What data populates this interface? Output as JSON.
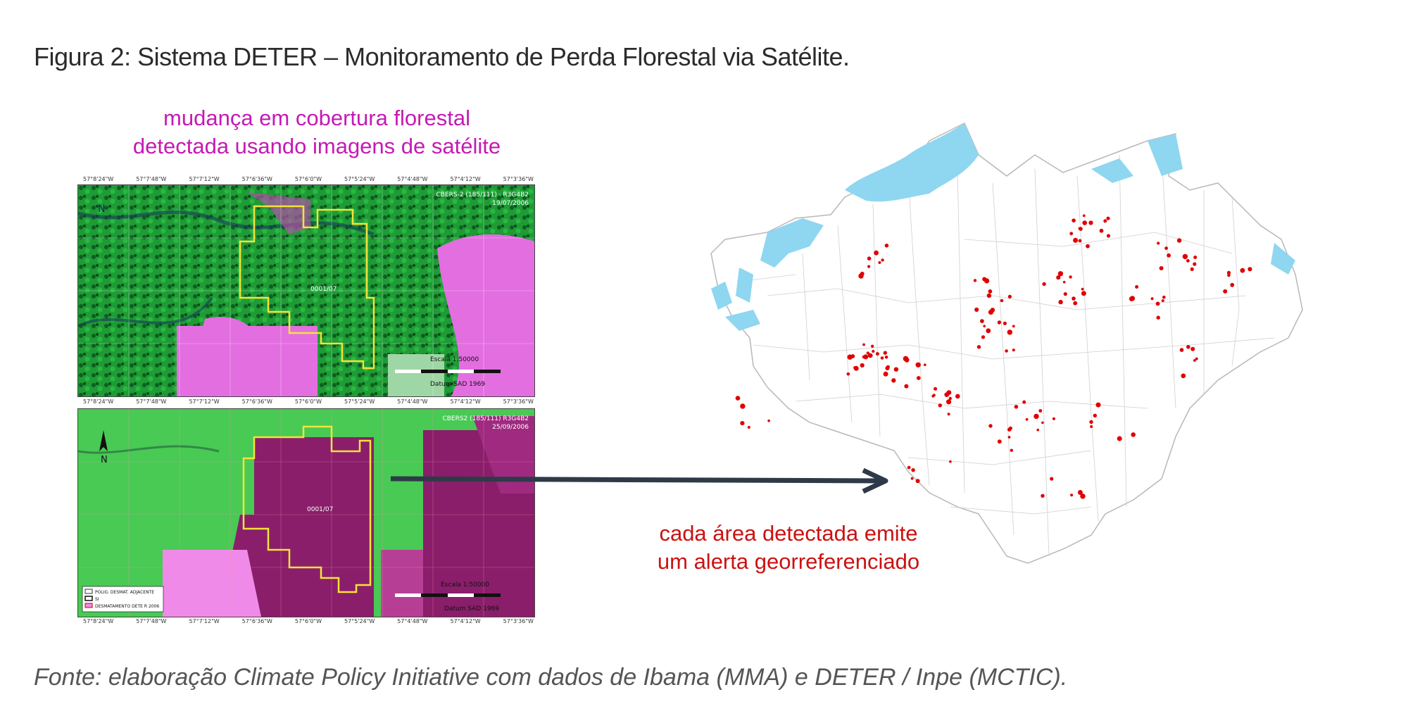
{
  "title": "Figura 2: Sistema DETER – Monitoramento de Perda Florestal via Satélite.",
  "caption_top": [
    "mudança em cobertura florestal",
    "detectada usando imagens de satélite"
  ],
  "caption_right": [
    "cada área detectada emite",
    "um alerta georreferenciado"
  ],
  "source": "Fonte: elaboração Climate Policy Initiative com dados de Ibama (MMA) e DETER / Inpe (MCTIC).",
  "panels": {
    "top": {
      "sensor": "CBERS-2 (185/111) · R3G4B2",
      "date": "19/07/2006",
      "polygon_id": "0001/07",
      "scale": "Escala 1:50000",
      "datum": "Datum SAD 1969"
    },
    "bottom": {
      "sensor": "CBERS2 (185/111) R3G4B2",
      "date": "25/09/2006",
      "polygon_id": "0001/07",
      "scale": "Escala 1:50000",
      "datum": "Datum SAD 1969",
      "legend": [
        "POLIG. DESMAT. ADJACENTE",
        "SI",
        "DESMATAMENTO DETE R 2006"
      ]
    }
  },
  "ticks": [
    "57°8'24\"W",
    "57°7'48\"W",
    "57°7'12\"W",
    "57°6'36\"W",
    "57°6'0\"W",
    "57°5'24\"W",
    "57°4'48\"W",
    "57°4'12\"W",
    "57°3'36\"W"
  ],
  "colors": {
    "forest": "#1fa83a",
    "deforest": "#e05adf",
    "polygon": "#f4e33a",
    "water": "#8fd6f0",
    "alert": "#e00000",
    "arrow": "#2f3a48"
  }
}
